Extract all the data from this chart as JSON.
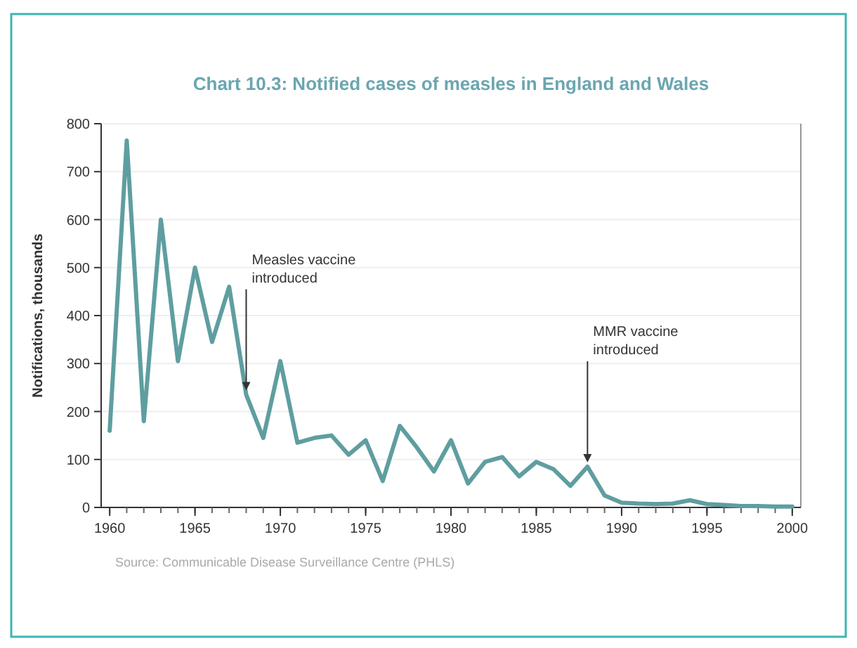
{
  "chart_data": {
    "type": "line",
    "title": "Chart 10.3: Notified cases of measles in England and Wales",
    "ylabel": "Notifications, thousands",
    "x": [
      1960,
      1961,
      1962,
      1963,
      1964,
      1965,
      1966,
      1967,
      1968,
      1969,
      1970,
      1971,
      1972,
      1973,
      1974,
      1975,
      1976,
      1977,
      1978,
      1979,
      1980,
      1981,
      1982,
      1983,
      1984,
      1985,
      1986,
      1987,
      1988,
      1989,
      1990,
      1991,
      1992,
      1993,
      1994,
      1995,
      1996,
      1997,
      1998,
      1999,
      2000
    ],
    "series": [
      {
        "color": "#5f9ea0",
        "values": [
          160,
          765,
          180,
          600,
          305,
          500,
          345,
          460,
          235,
          145,
          305,
          135,
          145,
          150,
          110,
          140,
          55,
          170,
          125,
          75,
          140,
          50,
          95,
          105,
          65,
          95,
          80,
          45,
          85,
          25,
          10,
          8,
          7,
          8,
          15,
          7,
          5,
          3,
          3,
          2,
          2
        ]
      }
    ],
    "xlim": [
      1959.5,
      2000.5
    ],
    "xticks": [
      1960,
      1965,
      1970,
      1975,
      1980,
      1985,
      1990,
      1995,
      2000
    ],
    "ylim": [
      0,
      800
    ],
    "yticks": [
      0,
      100,
      200,
      300,
      400,
      500,
      600,
      700,
      800
    ],
    "grid": "y",
    "marker": "none",
    "line_style": "solid",
    "annotations": [
      {
        "text": "Measles vaccine introduced",
        "x": 1968,
        "y": 235
      },
      {
        "text": "MMR vaccine introduced",
        "x": 1988,
        "y": 85
      },
      "Source: Communicable Disease Surveillance Centre (PHLS)"
    ]
  }
}
